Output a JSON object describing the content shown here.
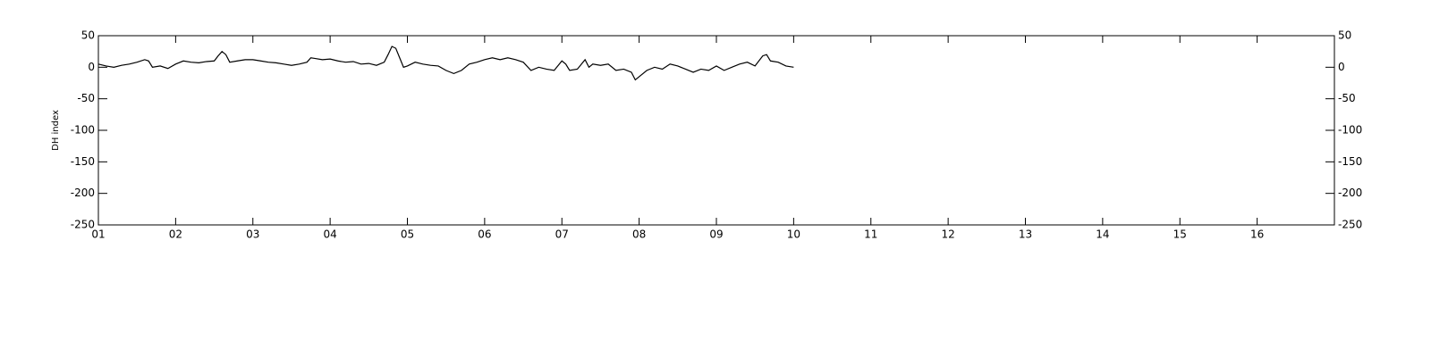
{
  "chart_data": {
    "type": "line",
    "ylabel": "DH index",
    "x": [
      1.0,
      1.1,
      1.2,
      1.3,
      1.4,
      1.5,
      1.6,
      1.65,
      1.7,
      1.8,
      1.9,
      2.0,
      2.1,
      2.2,
      2.3,
      2.4,
      2.5,
      2.55,
      2.6,
      2.65,
      2.7,
      2.8,
      2.9,
      3.0,
      3.1,
      3.2,
      3.3,
      3.4,
      3.5,
      3.6,
      3.7,
      3.75,
      3.8,
      3.9,
      4.0,
      4.1,
      4.2,
      4.3,
      4.4,
      4.5,
      4.6,
      4.7,
      4.75,
      4.8,
      4.85,
      4.9,
      4.95,
      5.0,
      5.1,
      5.2,
      5.3,
      5.4,
      5.5,
      5.6,
      5.7,
      5.8,
      5.9,
      6.0,
      6.1,
      6.2,
      6.3,
      6.4,
      6.5,
      6.6,
      6.7,
      6.8,
      6.9,
      7.0,
      7.05,
      7.1,
      7.2,
      7.3,
      7.35,
      7.4,
      7.5,
      7.6,
      7.7,
      7.8,
      7.9,
      7.95,
      8.0,
      8.1,
      8.2,
      8.3,
      8.4,
      8.5,
      8.6,
      8.7,
      8.8,
      8.9,
      9.0,
      9.1,
      9.2,
      9.3,
      9.4,
      9.5,
      9.6,
      9.65,
      9.7,
      9.8,
      9.9,
      10.0
    ],
    "series": [
      {
        "name": "DH index",
        "color": "#000000",
        "values": [
          5,
          2,
          0,
          3,
          5,
          8,
          12,
          10,
          0,
          2,
          -2,
          5,
          10,
          8,
          7,
          9,
          10,
          18,
          25,
          20,
          8,
          10,
          12,
          12,
          10,
          8,
          7,
          5,
          3,
          5,
          8,
          15,
          14,
          12,
          13,
          10,
          8,
          9,
          5,
          6,
          3,
          8,
          20,
          33,
          30,
          15,
          0,
          2,
          8,
          5,
          3,
          2,
          -5,
          -10,
          -5,
          5,
          8,
          12,
          15,
          12,
          15,
          12,
          8,
          -5,
          0,
          -3,
          -5,
          10,
          5,
          -5,
          -3,
          12,
          0,
          5,
          3,
          5,
          -5,
          -3,
          -8,
          -20,
          -15,
          -5,
          0,
          -3,
          5,
          2,
          -3,
          -8,
          -3,
          -5,
          2,
          -5,
          0,
          5,
          8,
          2,
          18,
          20,
          10,
          8,
          2,
          0
        ]
      }
    ],
    "xlim": [
      1,
      17
    ],
    "xticks": [
      {
        "value": 1,
        "label": "01"
      },
      {
        "value": 2,
        "label": "02"
      },
      {
        "value": 3,
        "label": "03"
      },
      {
        "value": 4,
        "label": "04"
      },
      {
        "value": 5,
        "label": "05"
      },
      {
        "value": 6,
        "label": "06"
      },
      {
        "value": 7,
        "label": "07"
      },
      {
        "value": 8,
        "label": "08"
      },
      {
        "value": 9,
        "label": "09"
      },
      10,
      11,
      12,
      13,
      14,
      15,
      16
    ],
    "ylim": [
      -250,
      50
    ],
    "yticks": [
      -250,
      -200,
      -150,
      -100,
      -50,
      0,
      50
    ],
    "grid": false
  }
}
